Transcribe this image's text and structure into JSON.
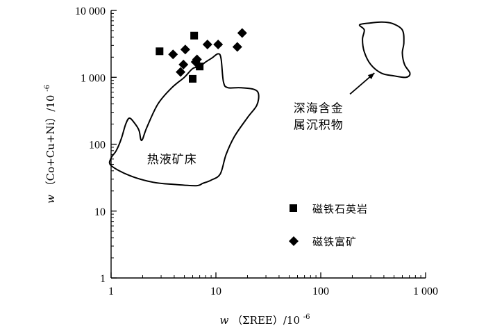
{
  "chart_data": {
    "type": "scatter",
    "x_scale": "log",
    "y_scale": "log",
    "xlim": [
      1,
      1000
    ],
    "ylim": [
      1,
      10000
    ],
    "x_ticks": [
      1,
      10,
      100,
      1000
    ],
    "y_ticks": [
      1,
      10,
      100,
      1000,
      10000
    ],
    "x_tick_labels": [
      "1",
      "10",
      "100",
      "1 000"
    ],
    "y_tick_labels": [
      "1",
      "10",
      "100",
      "1 000",
      "10 000"
    ],
    "xlabel": {
      "var": "w",
      "text": "（ΣREE）/10",
      "exp": "-6"
    },
    "ylabel": {
      "var": "w",
      "text": "（Co+Cu+Ni）/10",
      "exp": "-6"
    },
    "grid": false,
    "legend_position": "bottom-right",
    "series": [
      {
        "name": "磁铁石英岩",
        "marker": "square",
        "color": "#000000",
        "points": [
          {
            "x": 2.9,
            "y": 2450
          },
          {
            "x": 6.2,
            "y": 4200
          },
          {
            "x": 6.0,
            "y": 950
          },
          {
            "x": 7.0,
            "y": 1450
          }
        ]
      },
      {
        "name": "磁铁富矿",
        "marker": "diamond",
        "color": "#000000",
        "points": [
          {
            "x": 3.9,
            "y": 2200
          },
          {
            "x": 5.1,
            "y": 2600
          },
          {
            "x": 4.9,
            "y": 1550
          },
          {
            "x": 4.6,
            "y": 1200
          },
          {
            "x": 6.4,
            "y": 1700
          },
          {
            "x": 6.6,
            "y": 1850
          },
          {
            "x": 8.3,
            "y": 3100
          },
          {
            "x": 10.5,
            "y": 3100
          },
          {
            "x": 16.0,
            "y": 2850
          },
          {
            "x": 17.8,
            "y": 4600
          }
        ]
      }
    ],
    "regions": [
      {
        "name": "热液矿床",
        "label_at": {
          "x": 2.2,
          "y": 52
        },
        "boundary": [
          [
            1.0,
            48
          ],
          [
            1.5,
            34
          ],
          [
            2.5,
            27
          ],
          [
            4,
            25
          ],
          [
            6.5,
            24
          ],
          [
            7.5,
            26
          ],
          [
            9,
            29
          ],
          [
            11,
            36
          ],
          [
            12.5,
            70
          ],
          [
            15,
            130
          ],
          [
            20,
            250
          ],
          [
            24.5,
            380
          ],
          [
            25.5,
            560
          ],
          [
            23,
            660
          ],
          [
            17,
            700
          ],
          [
            13,
            700
          ],
          [
            11.8,
            850
          ],
          [
            11.2,
            1900
          ],
          [
            10.5,
            2250
          ],
          [
            9.2,
            1950
          ],
          [
            8,
            1700
          ],
          [
            7,
            1450
          ],
          [
            6,
            1350
          ],
          [
            5,
            1000
          ],
          [
            3.8,
            700
          ],
          [
            2.8,
            400
          ],
          [
            2.2,
            180
          ],
          [
            2.0,
            120
          ],
          [
            1.92,
            118
          ],
          [
            1.85,
            160
          ],
          [
            1.7,
            200
          ],
          [
            1.5,
            245
          ],
          [
            1.38,
            200
          ],
          [
            1.25,
            120
          ],
          [
            1.12,
            80
          ],
          [
            1.0,
            62
          ]
        ]
      },
      {
        "name": "深海含金属沉积物",
        "lines": [
          "深海含金",
          "属沉积物"
        ],
        "label_at": {
          "x": 55,
          "y": 300
        },
        "arrow_from": {
          "x": 190,
          "y": 560
        },
        "arrow_to": {
          "x": 325,
          "y": 1160
        },
        "boundary": [
          [
            235,
            6100
          ],
          [
            260,
            5100
          ],
          [
            250,
            3700
          ],
          [
            260,
            2400
          ],
          [
            300,
            1550
          ],
          [
            380,
            1150
          ],
          [
            500,
            1050
          ],
          [
            650,
            1000
          ],
          [
            710,
            1150
          ],
          [
            630,
            1550
          ],
          [
            600,
            2300
          ],
          [
            620,
            3300
          ],
          [
            600,
            5100
          ],
          [
            480,
            6400
          ],
          [
            380,
            6700
          ],
          [
            300,
            6500
          ]
        ]
      }
    ]
  }
}
